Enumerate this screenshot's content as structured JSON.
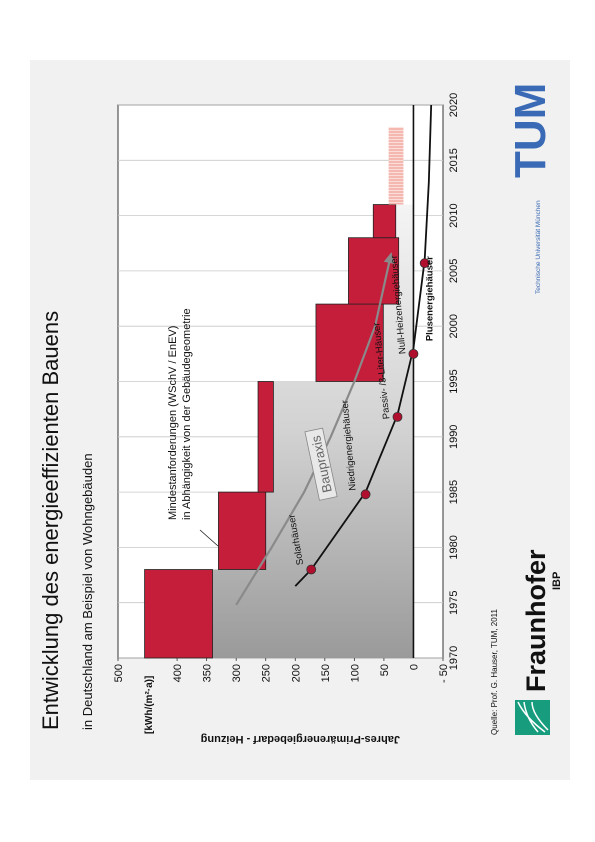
{
  "chart_data": {
    "type": "step-range",
    "title": "Entwicklung des energieeffizienten Bauens",
    "subtitle": "in Deutschland am Beispiel von Wohngebäuden",
    "y_label": "Jahres-Primärenergiebedarf - Heizung",
    "y_unit": "[kWh/(m²·a)]",
    "xlim": [
      1970,
      2020
    ],
    "xticks": [
      1970,
      1975,
      1980,
      1985,
      1990,
      1995,
      2000,
      2005,
      2010,
      2015,
      2020
    ],
    "ylim": [
      -50,
      500
    ],
    "yticks": [
      {
        "value": -50,
        "label": "- 50"
      },
      0,
      50,
      100,
      150,
      200,
      250,
      300,
      350,
      400,
      500
    ],
    "x_grid": true,
    "blocks": {
      "x_start": [
        1970,
        1978,
        1985,
        1995,
        2002,
        2008,
        2011
      ],
      "x_end": [
        1978,
        1985,
        1995,
        2002,
        2008,
        2011,
        2018
      ],
      "low": [
        340,
        250,
        237,
        51,
        25,
        30,
        17
      ],
      "high": [
        455,
        330,
        263,
        165,
        110,
        68,
        42
      ],
      "colors": [
        "#c41e3a",
        "#c41e3a",
        "#c41e3a",
        "#c41e3a",
        "#c41e3a",
        "#c41e3a",
        "#f4b8b0"
      ]
    },
    "curve": {
      "color": "#111111",
      "x": [
        1976.5,
        1978,
        1985,
        1992,
        1998,
        2006,
        2013,
        2020
      ],
      "values": [
        200,
        173,
        81,
        27,
        0,
        -19,
        -26,
        -30
      ]
    },
    "trend": {
      "color": "#8a8a8a",
      "x": [
        1974.8,
        1980,
        1985,
        1990,
        1995,
        2000,
        2006.5
      ],
      "values": [
        300,
        240,
        185,
        140,
        100,
        65,
        38
      ]
    },
    "points": {
      "color": "#b0102e",
      "x": [
        1978,
        1984.8,
        1991.8,
        1997.5,
        2005.7
      ],
      "values": [
        173,
        81,
        27,
        0,
        -19
      ],
      "labels": [
        "Solarhäuser",
        "Niedrigenergiehäuser",
        "Passiv- /3-Liter-Häuser",
        "Null-Heizenergiehäuser",
        "Plusenergiehäuser"
      ]
    },
    "annotations": [
      "Mindestanforderungen (WSchV / EnEV)",
      "in Abhängigkeit von der Gebäudegeometrie",
      "Baupraxis"
    ],
    "source": "Quelle: Prof. G. Hauser, TUM, 2011",
    "logos": {
      "fraunhofer": "Fraunhofer",
      "ibp": "IBP",
      "tum": "TUM",
      "tum_name": "Technische Universität München"
    }
  }
}
